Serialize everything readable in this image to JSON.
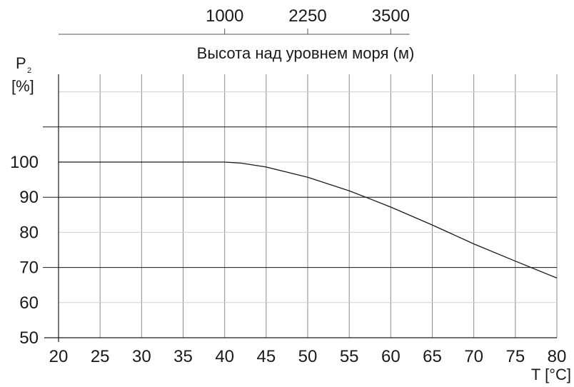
{
  "chart_data": {
    "type": "line",
    "xlabel": "T [°C]",
    "ylabel_main": "P",
    "ylabel_sub": "2",
    "ylabel_unit": "[%]",
    "xlim": [
      20,
      80
    ],
    "ylim": [
      50,
      125
    ],
    "x_ticks": [
      20,
      25,
      30,
      35,
      40,
      45,
      50,
      55,
      60,
      65,
      70,
      75,
      80
    ],
    "y_ticks": [
      50,
      60,
      70,
      80,
      90,
      100
    ],
    "major_y_lines": [
      70,
      90,
      110
    ],
    "top_axis": {
      "label": "Высота над уровнем моря (м)",
      "ticks": [
        {
          "label": "1000",
          "x": 40
        },
        {
          "label": "2250",
          "x": 50
        },
        {
          "label": "3500",
          "x": 60
        }
      ],
      "range_x": [
        20,
        70
      ]
    },
    "series": [
      {
        "x": [
          20,
          25,
          30,
          35,
          40,
          42,
          45,
          50,
          55,
          57,
          60,
          65,
          70,
          75,
          80
        ],
        "y": [
          100,
          100,
          100,
          100,
          100,
          99.7,
          98.6,
          95.7,
          91.8,
          90,
          87.2,
          82.1,
          76.7,
          71.8,
          67
        ]
      }
    ],
    "grid": true
  }
}
